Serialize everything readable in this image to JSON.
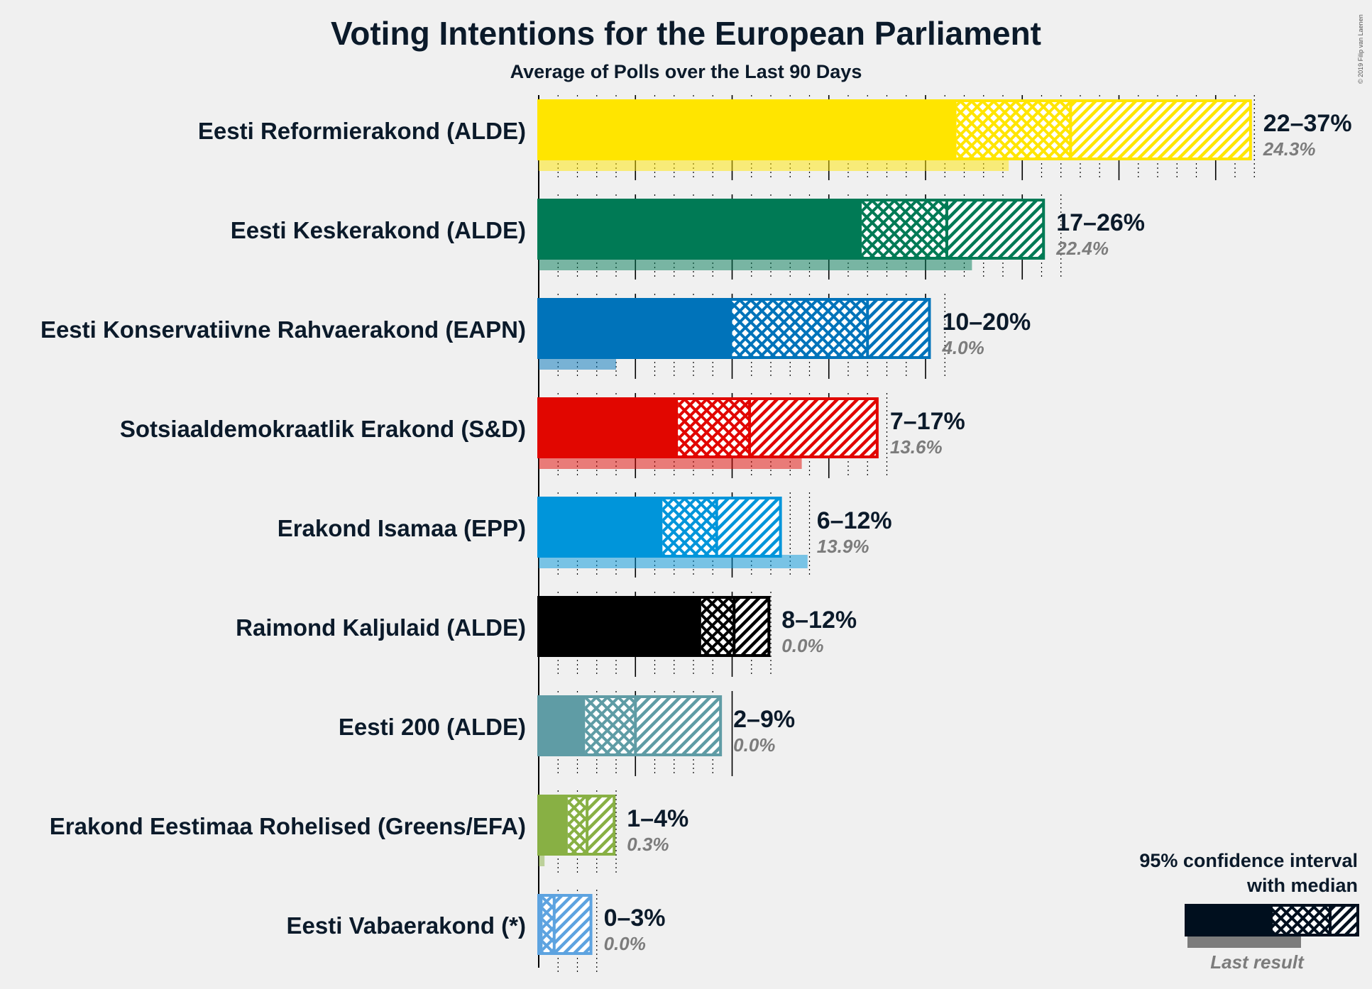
{
  "title": "Voting Intentions for the European Parliament",
  "subtitle": "Average of Polls over the Last 90 Days",
  "credit": "© 2019 Filip van Laenen",
  "chart_data": {
    "type": "bar",
    "orientation": "horizontal",
    "unit": "%",
    "xlim": [
      0,
      37
    ],
    "grid": "dotted minor lines every 1%, solid major lines every 5%",
    "parties": [
      {
        "name": "Eesti Reformierakond (ALDE)",
        "color": "#FFE500",
        "low": 21.6,
        "q_low": 27.5,
        "median": 27.5,
        "q_high": 33.6,
        "high": 36.8,
        "last": 24.3,
        "range_label": "22–37%",
        "last_label": "24.3%"
      },
      {
        "name": "Eesti Keskerakond (ALDE)",
        "color": "#007A55",
        "low": 16.7,
        "q_low": 16.7,
        "median": 21.1,
        "q_high": 21.1,
        "high": 26.1,
        "last": 22.4,
        "range_label": "17–26%",
        "last_label": "22.4%"
      },
      {
        "name": "Eesti Konservatiivne Rahvaerakond (EAPN)",
        "color": "#0073BA",
        "low": 10.0,
        "q_low": 10.0,
        "median": 17.0,
        "q_high": 17.0,
        "high": 20.2,
        "last": 4.0,
        "range_label": "10–20%",
        "last_label": "4.0%"
      },
      {
        "name": "Sotsiaaldemokraatlik Erakond (S&D)",
        "color": "#E10600",
        "low": 7.2,
        "q_low": 7.2,
        "median": 10.9,
        "q_high": 10.9,
        "high": 17.5,
        "last": 13.6,
        "range_label": "7–17%",
        "last_label": "13.6%"
      },
      {
        "name": "Erakond Isamaa (EPP)",
        "color": "#0095DA",
        "low": 6.4,
        "q_low": 6.4,
        "median": 9.2,
        "q_high": 9.2,
        "high": 12.5,
        "last": 13.9,
        "range_label": "6–12%",
        "last_label": "13.9%"
      },
      {
        "name": "Raimond Kaljulaid (ALDE)",
        "color": "#000000",
        "low": 8.4,
        "q_low": 8.4,
        "median": 10.1,
        "q_high": 10.1,
        "high": 11.9,
        "last": 0.0,
        "range_label": "8–12%",
        "last_label": "0.0%"
      },
      {
        "name": "Eesti 200 (ALDE)",
        "color": "#5F9CA5",
        "low": 2.4,
        "q_low": 2.4,
        "median": 5.0,
        "q_high": 5.0,
        "high": 9.4,
        "last": 0.0,
        "range_label": "2–9%",
        "last_label": "0.0%"
      },
      {
        "name": "Erakond Eestimaa Rohelised (Greens/EFA)",
        "color": "#88B044",
        "low": 1.5,
        "q_low": 1.5,
        "median": 2.5,
        "q_high": 2.5,
        "high": 3.9,
        "last": 0.3,
        "range_label": "1–4%",
        "last_label": "0.3%"
      },
      {
        "name": "Eesti Vabaerakond (*)",
        "color": "#5DA3E0",
        "low": 0.2,
        "q_low": 0.2,
        "median": 0.8,
        "q_high": 0.8,
        "high": 2.7,
        "last": 0.0,
        "range_label": "0–3%",
        "last_label": "0.0%"
      }
    ]
  },
  "legend": {
    "line1": "95% confidence interval",
    "line2": "with median",
    "last_result": "Last result",
    "color": "#000F1E"
  }
}
